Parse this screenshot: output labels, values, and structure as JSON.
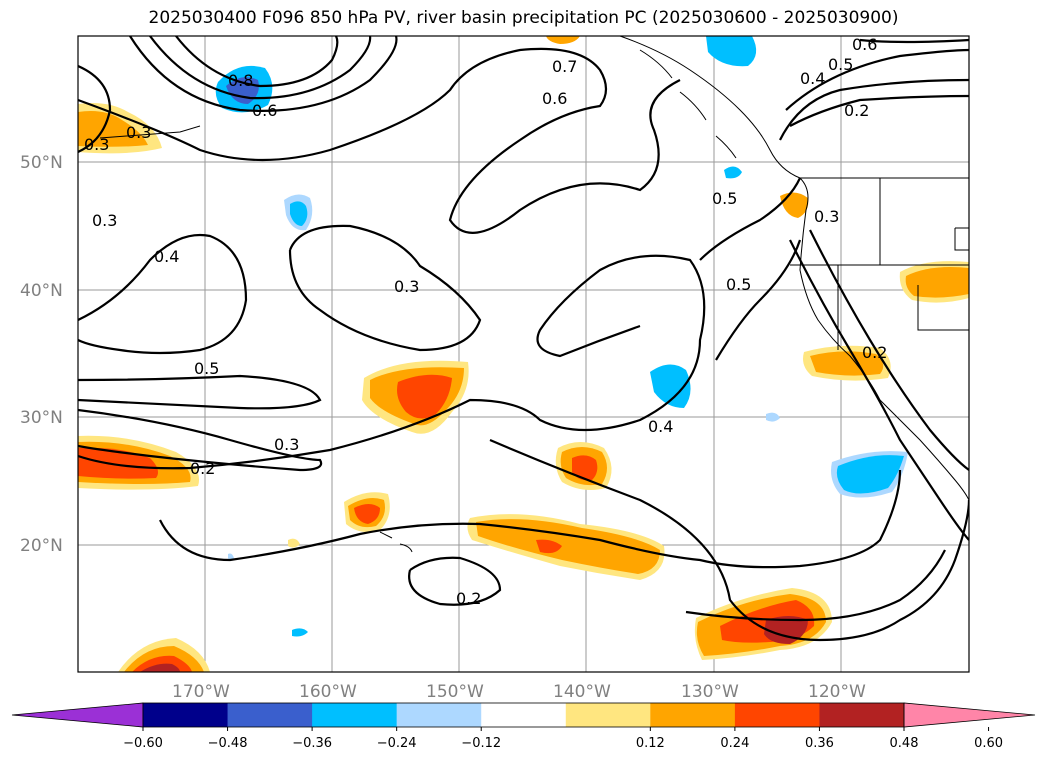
{
  "title": "2025030400 F096 850 hPa PV, river basin precipitation PC (2025030600 - 2025030900)",
  "lat_labels": [
    "50°N",
    "40°N",
    "30°N",
    "20°N"
  ],
  "lon_labels": [
    "170°W",
    "160°W",
    "150°W",
    "140°W",
    "130°W",
    "120°W"
  ],
  "colorbar": {
    "ticks": [
      "−0.60",
      "−0.48",
      "−0.36",
      "−0.24",
      "−0.12",
      "0.12",
      "0.24",
      "0.36",
      "0.48",
      "0.60"
    ],
    "colors": [
      "#9b30d6",
      "#00008b",
      "#3a5fcd",
      "#00bfff",
      "#add8ff",
      "#ffffff",
      "#ffe680",
      "#ffa500",
      "#ff4500",
      "#b22222",
      "#ff85a8"
    ]
  },
  "contour_labels": [
    "0.6",
    "0.5",
    "0.4",
    "0.8",
    "0.6",
    "0.3",
    "0.7",
    "0.6",
    "0.2",
    "0.5",
    "0.3",
    "0.3",
    "0.4",
    "0.3",
    "0.5",
    "0.5",
    "0.3",
    "0.2",
    "0.4",
    "0.2",
    "0.2",
    "0.3"
  ]
}
